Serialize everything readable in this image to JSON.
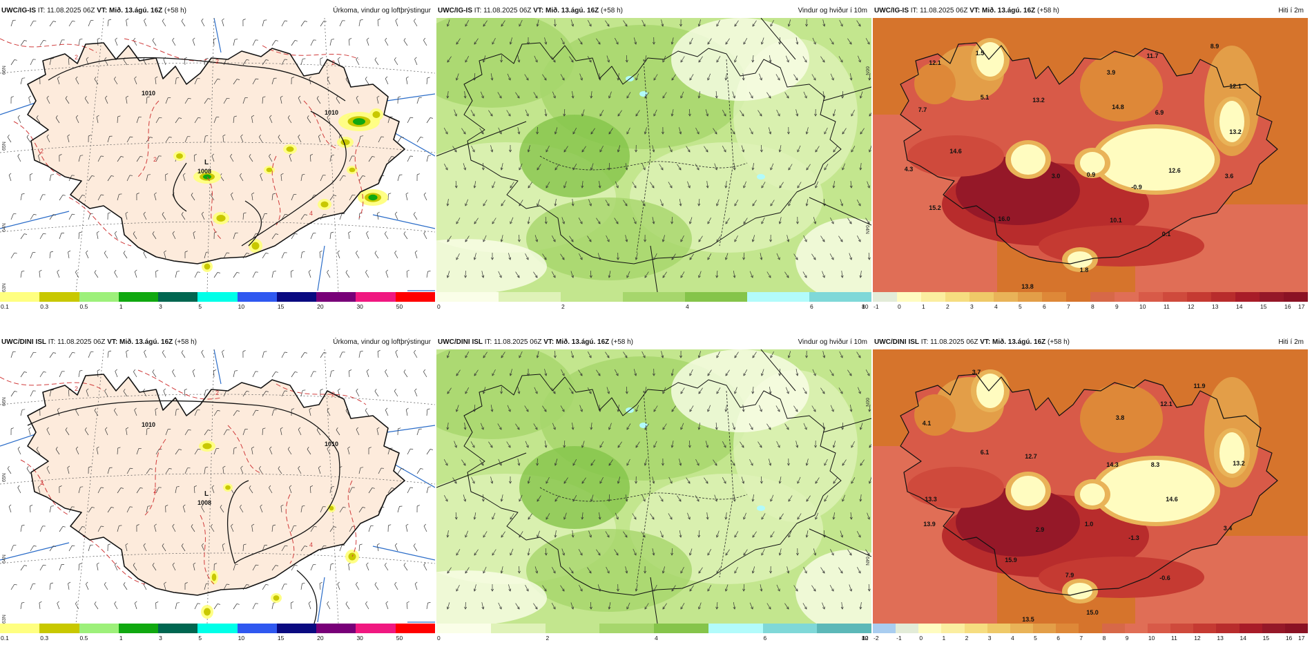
{
  "rows": [
    {
      "panels": [
        {
          "kind": "precip",
          "model": "UWC/IG-IS",
          "it_label": "IT:",
          "it_value": "11.08.2025 06Z",
          "vt_label": "VT:",
          "vt_value": "Mið. 13.ágú. 16Z",
          "lead": "(+58 h)",
          "title": "Úrkoma, vindur og loftþrýstingur",
          "pressure_labels": [
            "1010",
            "1010"
          ],
          "low_symbol": "L",
          "low_value": "1008",
          "dash_labels": [
            "2",
            "2",
            "2",
            "2",
            "2",
            "4"
          ],
          "grid_labels": [
            "66N",
            "65N",
            "64N",
            "63N"
          ],
          "scale": {
            "colors": [
              "#ffff80",
              "#c8c800",
              "#9df07a",
              "#10a810",
              "#006650",
              "#00ffe8",
              "#2f58f0",
              "#0a0a80",
              "#780078",
              "#f01880",
              "#ff0000"
            ],
            "ticks": [
              "0.1",
              "0.3",
              "0.5",
              "1",
              "3",
              "5",
              "10",
              "15",
              "20",
              "30",
              "50"
            ]
          }
        },
        {
          "kind": "wind",
          "model": "UWC/IG-IS",
          "it_label": "IT:",
          "it_value": "11.08.2025 06Z",
          "vt_label": "VT:",
          "vt_value": "Mið. 13.ágú. 16Z",
          "lead": "(+58 h)",
          "title": "Vindur og hviður í 10m",
          "grid_labels": [
            "66N",
            "64N"
          ],
          "scale": {
            "colors": [
              "#fafee8",
              "#dff2b8",
              "#c3e68e",
              "#a6d66c",
              "#85c44a",
              "#b2fbfb",
              "#7fd8d8"
            ],
            "ticks": [
              "0",
              "2",
              "4",
              "6",
              "8",
              "10"
            ]
          }
        },
        {
          "kind": "temp",
          "model": "UWC/IG-IS",
          "it_label": "IT:",
          "it_value": "11.08.2025 06Z",
          "vt_label": "VT:",
          "vt_value": "Mið. 13.ágú. 16Z",
          "lead": "(+58 h)",
          "title": "Hiti í 2m",
          "temps": [
            "12.1",
            "1.5",
            "11.7",
            "8.9",
            "7.7",
            "5.1",
            "13.2",
            "3.9",
            "14.8",
            "6.9",
            "12.1",
            "13.2",
            "14.6",
            "4.3",
            "3.0",
            "0.9",
            "-0.9",
            "12.6",
            "3.6",
            "15.2",
            "16.0",
            "10.1",
            "0.1",
            "1.8",
            "13.8"
          ],
          "scale": {
            "colors": [
              "#e3ecd8",
              "#fffcc0",
              "#fbeea0",
              "#f6dd80",
              "#efc968",
              "#e9b358",
              "#e39e48",
              "#de8838",
              "#d6742c",
              "#d76848",
              "#e06e56",
              "#d85a48",
              "#cf4a3c",
              "#c53a32",
              "#b82c2c",
              "#a81c28",
              "#951828",
              "#8a1224"
            ],
            "ticks": [
              "-1",
              "0",
              "1",
              "2",
              "3",
              "4",
              "5",
              "6",
              "7",
              "8",
              "9",
              "10",
              "11",
              "12",
              "13",
              "14",
              "15",
              "16",
              "17"
            ]
          }
        }
      ]
    },
    {
      "panels": [
        {
          "kind": "precip",
          "model": "UWC/DINI ISL",
          "it_label": "IT:",
          "it_value": "11.08.2025 06Z",
          "vt_label": "VT:",
          "vt_value": "Mið. 13.ágú. 16Z",
          "lead": "(+58 h)",
          "title": "Úrkoma, vindur og loftþrýstingur",
          "pressure_labels": [
            "1010",
            "1010"
          ],
          "low_symbol": "L",
          "low_value": "1008",
          "dash_labels": [
            "2",
            "2",
            "2",
            "2",
            "2",
            "4"
          ],
          "grid_labels": [
            "66N",
            "65N",
            "64N",
            "63N"
          ],
          "scale": {
            "colors": [
              "#ffff80",
              "#c8c800",
              "#9df07a",
              "#10a810",
              "#006650",
              "#00ffe8",
              "#2f58f0",
              "#0a0a80",
              "#780078",
              "#f01880",
              "#ff0000"
            ],
            "ticks": [
              "0.1",
              "0.3",
              "0.5",
              "1",
              "3",
              "5",
              "10",
              "15",
              "20",
              "30",
              "50"
            ]
          }
        },
        {
          "kind": "wind",
          "model": "UWC/DINI ISL",
          "it_label": "IT:",
          "it_value": "11.08.2025 06Z",
          "vt_label": "VT:",
          "vt_value": "Mið. 13.ágú. 16Z",
          "lead": "(+58 h)",
          "title": "Vindur og hviður í 10m",
          "grid_labels": [
            "66N",
            "64N"
          ],
          "scale": {
            "colors": [
              "#fafee8",
              "#dff2b8",
              "#c3e68e",
              "#a6d66c",
              "#85c44a",
              "#b2fbfb",
              "#7fd8d8",
              "#5cb8b8"
            ],
            "ticks": [
              "0",
              "2",
              "4",
              "6",
              "8",
              "10",
              "12"
            ]
          }
        },
        {
          "kind": "temp",
          "model": "UWC/DINI ISL",
          "it_label": "IT:",
          "it_value": "11.08.2025 06Z",
          "vt_label": "VT:",
          "vt_value": "Mið. 13.ágú. 16Z",
          "lead": "(+58 h)",
          "title": "Hiti í 2m",
          "temps": [
            "3.7",
            "11.9",
            "4.1",
            "12.1",
            "3.8",
            "6.1",
            "12.7",
            "14.3",
            "8.3",
            "13.2",
            "13.3",
            "13.9",
            "14.6",
            "2.9",
            "1.0",
            "-1.3",
            "3.4",
            "15.9",
            "7.9",
            "-0.6",
            "15.0",
            "13.5"
          ],
          "scale": {
            "colors": [
              "#a9cdf0",
              "#e3ecd8",
              "#fffcc0",
              "#fbeea0",
              "#f6dd80",
              "#efc968",
              "#e9b358",
              "#e39e48",
              "#de8838",
              "#d6742c",
              "#d76848",
              "#e06e56",
              "#d85a48",
              "#cf4a3c",
              "#c53a32",
              "#b82c2c",
              "#a81c28",
              "#951828",
              "#8a1224"
            ],
            "ticks": [
              "-2",
              "-1",
              "0",
              "1",
              "2",
              "3",
              "4",
              "5",
              "6",
              "7",
              "8",
              "9",
              "10",
              "11",
              "12",
              "13",
              "14",
              "15",
              "16",
              "17"
            ]
          }
        }
      ]
    }
  ]
}
